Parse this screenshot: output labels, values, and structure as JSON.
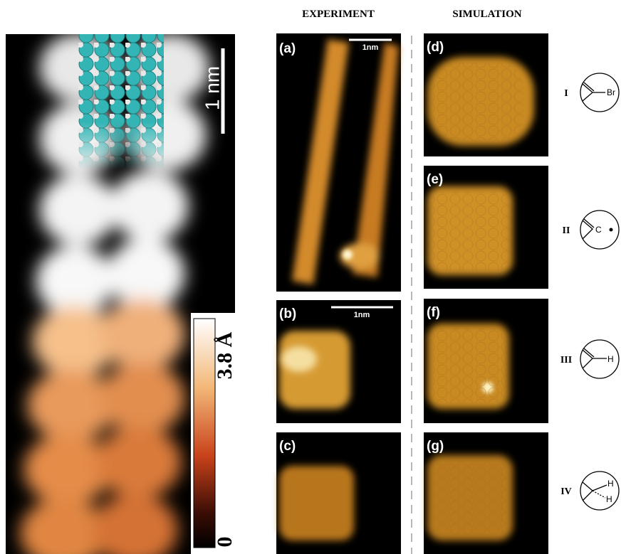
{
  "headers": {
    "experiment": "EXPERIMENT",
    "simulation": "SIMULATION"
  },
  "left_image": {
    "scale_bar": "1 nm",
    "colorbar": {
      "max_label": "3.8 Å",
      "min_label": "0"
    }
  },
  "panels": [
    {
      "label": "(a)",
      "scale_bar": "1nm"
    },
    {
      "label": "(b)",
      "scale_bar": "1nm"
    },
    {
      "label": "(c)"
    },
    {
      "label": "(d)"
    },
    {
      "label": "(e)"
    },
    {
      "label": "(f)"
    },
    {
      "label": "(g)"
    }
  ],
  "structures": [
    {
      "numeral": "I",
      "atoms": [
        "Br"
      ]
    },
    {
      "numeral": "II",
      "atoms": [
        "C"
      ]
    },
    {
      "numeral": "III",
      "atoms": [
        "H"
      ]
    },
    {
      "numeral": "IV",
      "atoms": [
        "H",
        "H"
      ]
    }
  ]
}
